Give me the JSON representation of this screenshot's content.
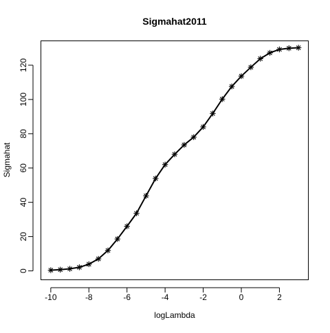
{
  "chart_data": {
    "type": "line",
    "title": "Sigmahat2011",
    "xlabel": "logLambda",
    "ylabel": "Sigmahat",
    "xlim": [
      -10.5,
      3.5
    ],
    "ylim": [
      -5,
      134
    ],
    "x_ticks": [
      -10,
      -8,
      -6,
      -4,
      -2,
      0,
      2
    ],
    "y_ticks": [
      0,
      20,
      40,
      60,
      80,
      100,
      120
    ],
    "grid": false,
    "legend": "none",
    "marker": "asterisk",
    "line_color": "#000000",
    "series": [
      {
        "x": [
          -10,
          -9.5,
          -9,
          -8.5,
          -8,
          -7.5,
          -7,
          -6.5,
          -6,
          -5.5,
          -5,
          -4.5,
          -4,
          -3.5,
          -3,
          -2.5,
          -2,
          -1.5,
          -1,
          -0.5,
          0,
          0.5,
          1,
          1.5,
          2,
          2.5,
          3
        ],
        "y": [
          0.4,
          0.7,
          1.2,
          2.1,
          3.9,
          7.0,
          11.9,
          18.6,
          26.0,
          33.6,
          43.8,
          53.9,
          62.0,
          68.0,
          73.5,
          78.0,
          84.0,
          91.8,
          100.2,
          107.6,
          113.6,
          118.8,
          123.8,
          127.2,
          129.2,
          129.9,
          130.2
        ]
      }
    ]
  }
}
